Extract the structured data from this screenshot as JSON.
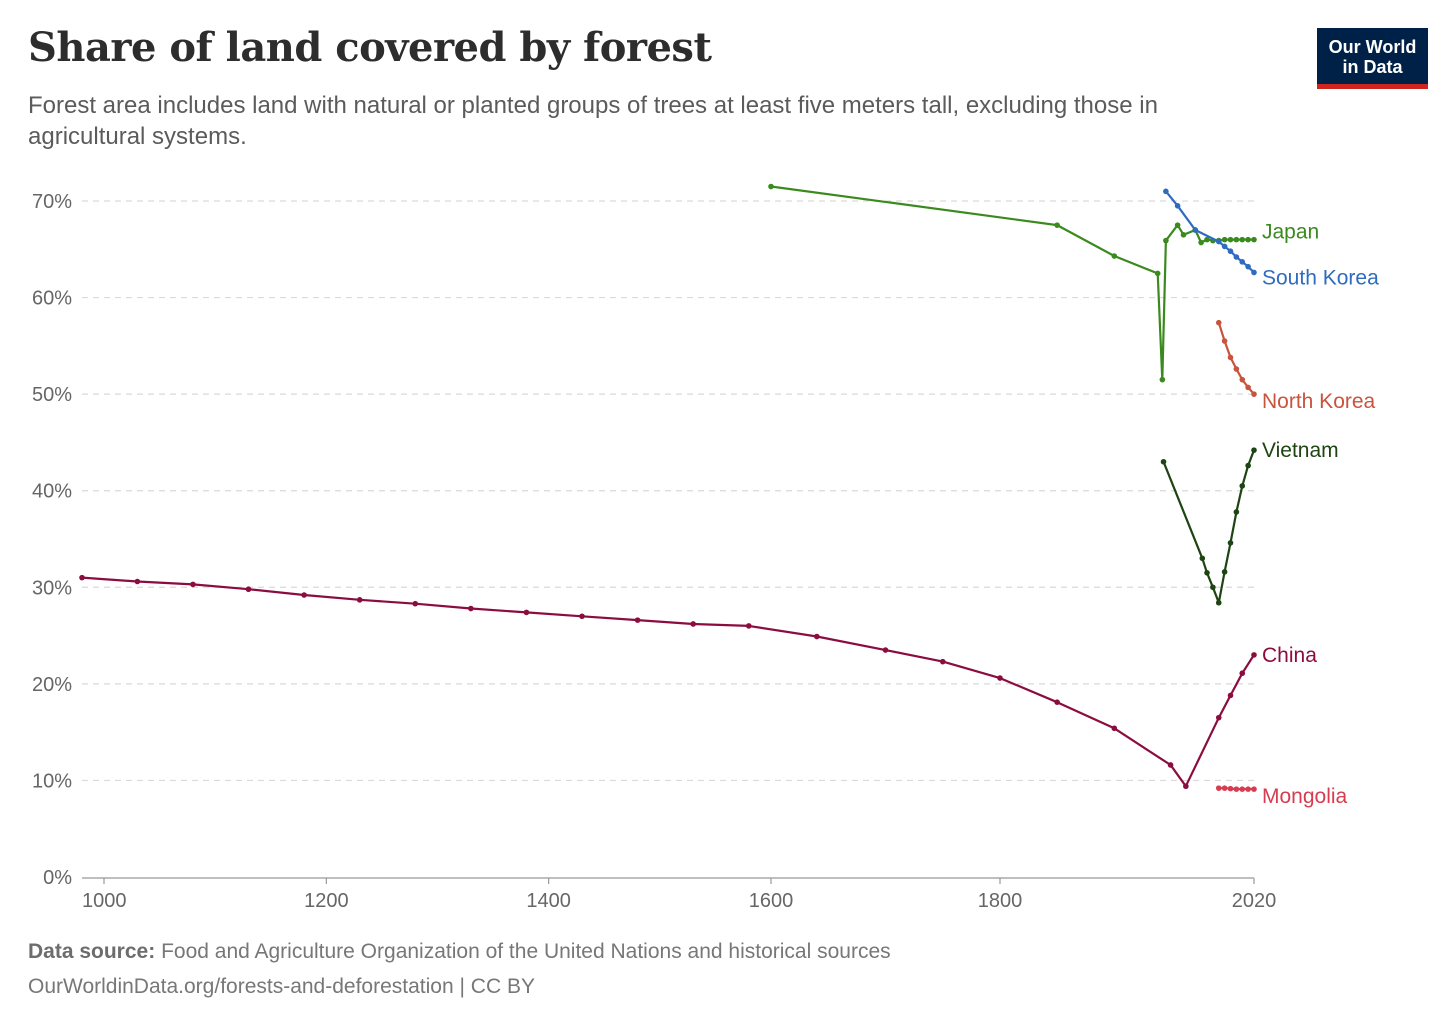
{
  "title": "Share of land covered by forest",
  "subtitle": "Forest area includes land with natural or planted groups of trees at least five meters tall, excluding those in agricultural systems.",
  "logo": {
    "line1": "Our World",
    "line2": "in Data",
    "bg": "#002147",
    "accent": "#ce261e"
  },
  "footer": {
    "source_label": "Data source:",
    "source_text": "Food and Agriculture Organization of the United Nations and historical sources",
    "url_text": "OurWorldinData.org/forests-and-deforestation | CC BY"
  },
  "chart_data": {
    "type": "line",
    "title": "Share of land covered by forest",
    "xlabel": "",
    "ylabel": "",
    "xlim": [
      980,
      2020
    ],
    "ylim": [
      0,
      70
    ],
    "x_ticks": [
      "1000",
      "1200",
      "1400",
      "1600",
      "1800",
      "2020"
    ],
    "x_tick_values": [
      1000,
      1200,
      1400,
      1600,
      1800,
      2020
    ],
    "y_ticks": [
      "0%",
      "10%",
      "20%",
      "30%",
      "40%",
      "50%",
      "60%",
      "70%"
    ],
    "y_tick_values": [
      0,
      10,
      20,
      30,
      40,
      50,
      60,
      70
    ],
    "grid": "horizontal dashed",
    "legend": "inline labels at line ends (right)",
    "series": [
      {
        "name": "Japan",
        "color": "#3a8a1e",
        "x": [
          1600,
          1850,
          1900,
          1938,
          1942,
          1945,
          1955,
          1960,
          1970,
          1975,
          1980,
          1985,
          1990,
          1995,
          2000,
          2005,
          2010,
          2015,
          2020
        ],
        "y": [
          71.5,
          67.5,
          64.3,
          62.5,
          51.5,
          65.9,
          67.5,
          66.5,
          67.0,
          65.7,
          66.0,
          65.9,
          65.9,
          66.0,
          66.0,
          66.0,
          66.0,
          66.0,
          66.0
        ]
      },
      {
        "name": "South Korea",
        "color": "#2f6bbf",
        "x": [
          1945,
          1955,
          1970,
          1990,
          1995,
          2000,
          2005,
          2010,
          2015,
          2020
        ],
        "y": [
          71.0,
          69.5,
          67.0,
          65.8,
          65.3,
          64.8,
          64.2,
          63.7,
          63.2,
          62.6
        ]
      },
      {
        "name": "North Korea",
        "color": "#c8543e",
        "x": [
          1990,
          1995,
          2000,
          2005,
          2010,
          2015,
          2020
        ],
        "y": [
          57.4,
          55.5,
          53.8,
          52.6,
          51.5,
          50.7,
          50.0
        ]
      },
      {
        "name": "Vietnam",
        "color": "#1e4413",
        "x": [
          1943,
          1976,
          1980,
          1985,
          1990,
          1995,
          2000,
          2005,
          2010,
          2015,
          2020
        ],
        "y": [
          43.0,
          33.0,
          31.5,
          30.0,
          28.4,
          31.6,
          34.6,
          37.8,
          40.5,
          42.6,
          44.2
        ]
      },
      {
        "name": "China",
        "color": "#8b0d3f",
        "x": [
          980,
          1030,
          1080,
          1130,
          1180,
          1230,
          1280,
          1330,
          1380,
          1430,
          1480,
          1530,
          1580,
          1640,
          1700,
          1750,
          1800,
          1850,
          1900,
          1949,
          1962,
          1990,
          2000,
          2010,
          2020
        ],
        "y": [
          31.0,
          30.6,
          30.3,
          29.8,
          29.2,
          28.7,
          28.3,
          27.8,
          27.4,
          27.0,
          26.6,
          26.2,
          26.0,
          24.9,
          23.5,
          22.3,
          20.6,
          18.1,
          15.4,
          11.6,
          9.4,
          16.5,
          18.8,
          21.1,
          23.0
        ]
      },
      {
        "name": "Mongolia",
        "color": "#d73c50",
        "x": [
          1990,
          1995,
          2000,
          2005,
          2010,
          2015,
          2020
        ],
        "y": [
          9.2,
          9.2,
          9.15,
          9.1,
          9.1,
          9.1,
          9.1
        ]
      }
    ]
  }
}
